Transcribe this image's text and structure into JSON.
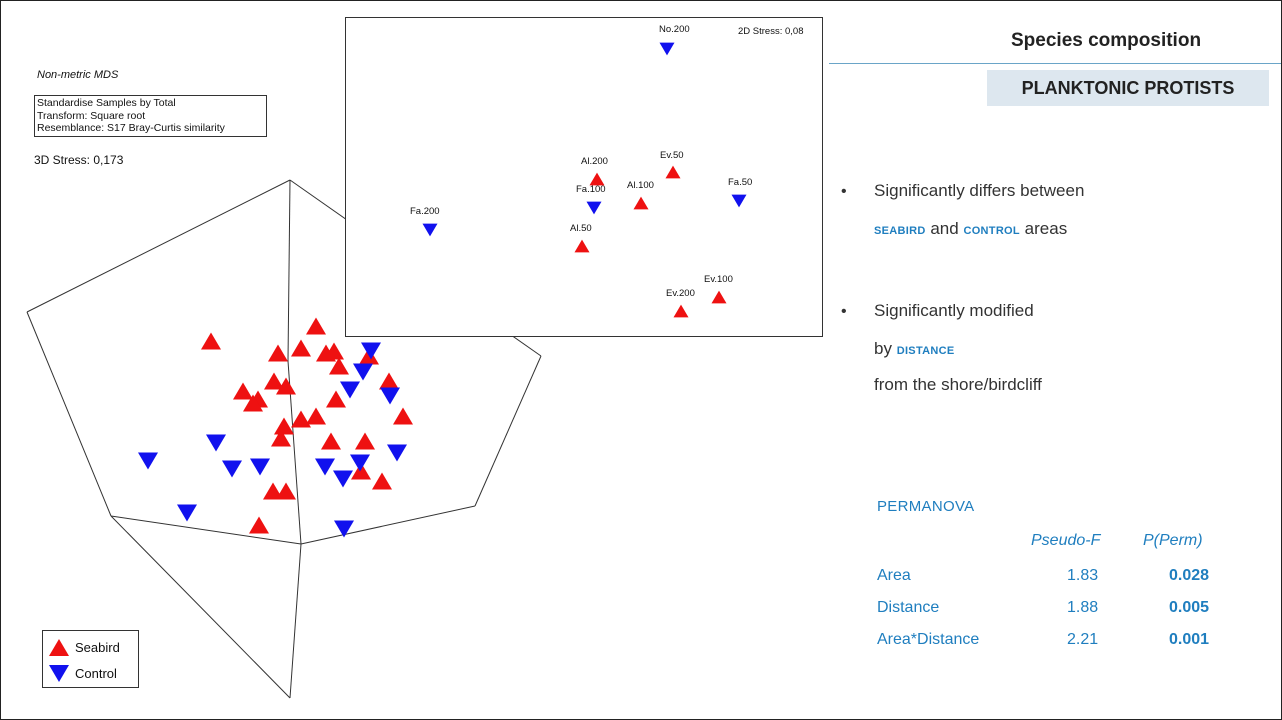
{
  "header": {
    "title": "Species composition",
    "badge": "PLANKTONIC PROTISTS"
  },
  "plot3d": {
    "method": "Non-metric MDS",
    "settings": [
      "Standardise Samples by Total",
      "Transform: Square root",
      "Resemblance: S17 Bray-Curtis similarity"
    ],
    "stress": "3D Stress: 0,173",
    "legend": [
      {
        "label": "Seabird",
        "marker": "triangle-up",
        "color": "#ee1111"
      },
      {
        "label": "Control",
        "marker": "triangle-down",
        "color": "#1111ee"
      }
    ]
  },
  "inset": {
    "stress": "2D Stress: 0,08",
    "points": [
      {
        "label": "No.200",
        "group": "Control"
      },
      {
        "label": "Al.200",
        "group": "Seabird"
      },
      {
        "label": "Ev.50",
        "group": "Seabird"
      },
      {
        "label": "Fa.100",
        "group": "Control"
      },
      {
        "label": "Al.100",
        "group": "Seabird"
      },
      {
        "label": "Fa.50",
        "group": "Control"
      },
      {
        "label": "Fa.200",
        "group": "Control"
      },
      {
        "label": "Al.50",
        "group": "Seabird"
      },
      {
        "label": "Ev.100",
        "group": "Seabird"
      },
      {
        "label": "Ev.200",
        "group": "Seabird"
      }
    ]
  },
  "bullets": {
    "b1_line1": "Significantly differs between",
    "b1_kw1": "SEABIRD",
    "b1_and": "and",
    "b1_kw2": "CONTROL",
    "b1_end": "areas",
    "b2_line1": "Significantly modified",
    "b2_by": "by",
    "b2_kw": "DISTANCE",
    "b2_line3": "from the shore/birdcliff",
    "bullet_char": "•"
  },
  "permanova": {
    "title": "PERMANOVA",
    "col1": "Pseudo-F",
    "col2": "P(Perm)",
    "rows": [
      {
        "term": "Area",
        "f": "1.83",
        "p": "0.028"
      },
      {
        "term": "Distance",
        "f": "1.88",
        "p": "0.005"
      },
      {
        "term": "Area*Distance",
        "f": "2.21",
        "p": "0.001"
      }
    ]
  },
  "colors": {
    "seabird": "#ee1111",
    "control": "#1111ee",
    "accent": "#1f7ebf"
  }
}
